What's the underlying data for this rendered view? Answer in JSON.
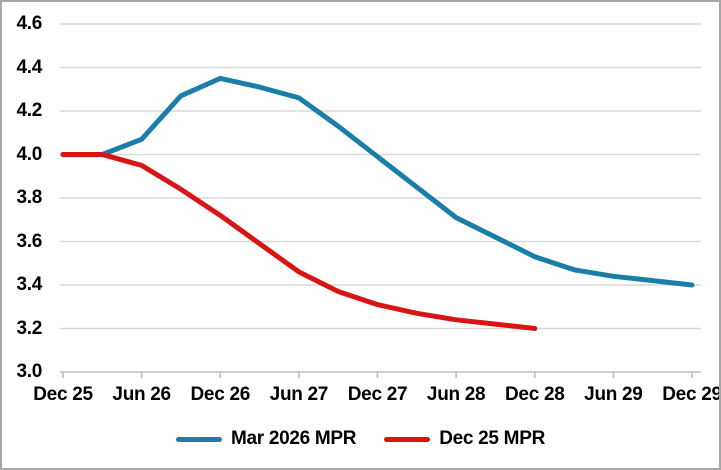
{
  "chart": {
    "background": "#FFFFFF",
    "border_color": "#A6A6A6",
    "gridline_color": "#D9D9D9",
    "axis_line_color": "#BFBFBF",
    "label_color": "#000000"
  },
  "chart_data": {
    "type": "line",
    "title": "",
    "xlabel": "",
    "ylabel": "",
    "categories": [
      "Dec 25",
      "Mar 26",
      "Jun 26",
      "Sep 26",
      "Dec 26",
      "Mar 27",
      "Jun 27",
      "Sep 27",
      "Dec 27",
      "Mar 28",
      "Jun 28",
      "Sep 28",
      "Dec 28",
      "Mar 29",
      "Jun 29",
      "Sep 29",
      "Dec 29"
    ],
    "x_tick_labels": [
      "Dec 25",
      "Jun 26",
      "Dec 26",
      "Jun 27",
      "Dec 27",
      "Jun 28",
      "Dec 28",
      "Jun 29",
      "Dec 29"
    ],
    "y_tick_labels": [
      "4.6",
      "4.4",
      "4.2",
      "4.0",
      "3.8",
      "3.6",
      "3.4",
      "3.2",
      "3.0"
    ],
    "ylim": [
      3.0,
      4.6
    ],
    "ytick_step": 0.2,
    "grid": "horizontal",
    "legend_position": "bottom",
    "series": [
      {
        "name": "Mar 2026 MPR",
        "color": "#1B7EA8",
        "values": [
          4.0,
          4.0,
          4.07,
          4.27,
          4.35,
          4.31,
          4.26,
          4.13,
          3.99,
          3.85,
          3.71,
          3.62,
          3.53,
          3.47,
          3.44,
          3.42,
          3.4
        ]
      },
      {
        "name": "Dec 25 MPR",
        "color": "#D91414",
        "values": [
          4.0,
          4.0,
          3.95,
          3.84,
          3.72,
          3.59,
          3.46,
          3.37,
          3.31,
          3.27,
          3.24,
          3.22,
          3.2
        ]
      }
    ]
  }
}
